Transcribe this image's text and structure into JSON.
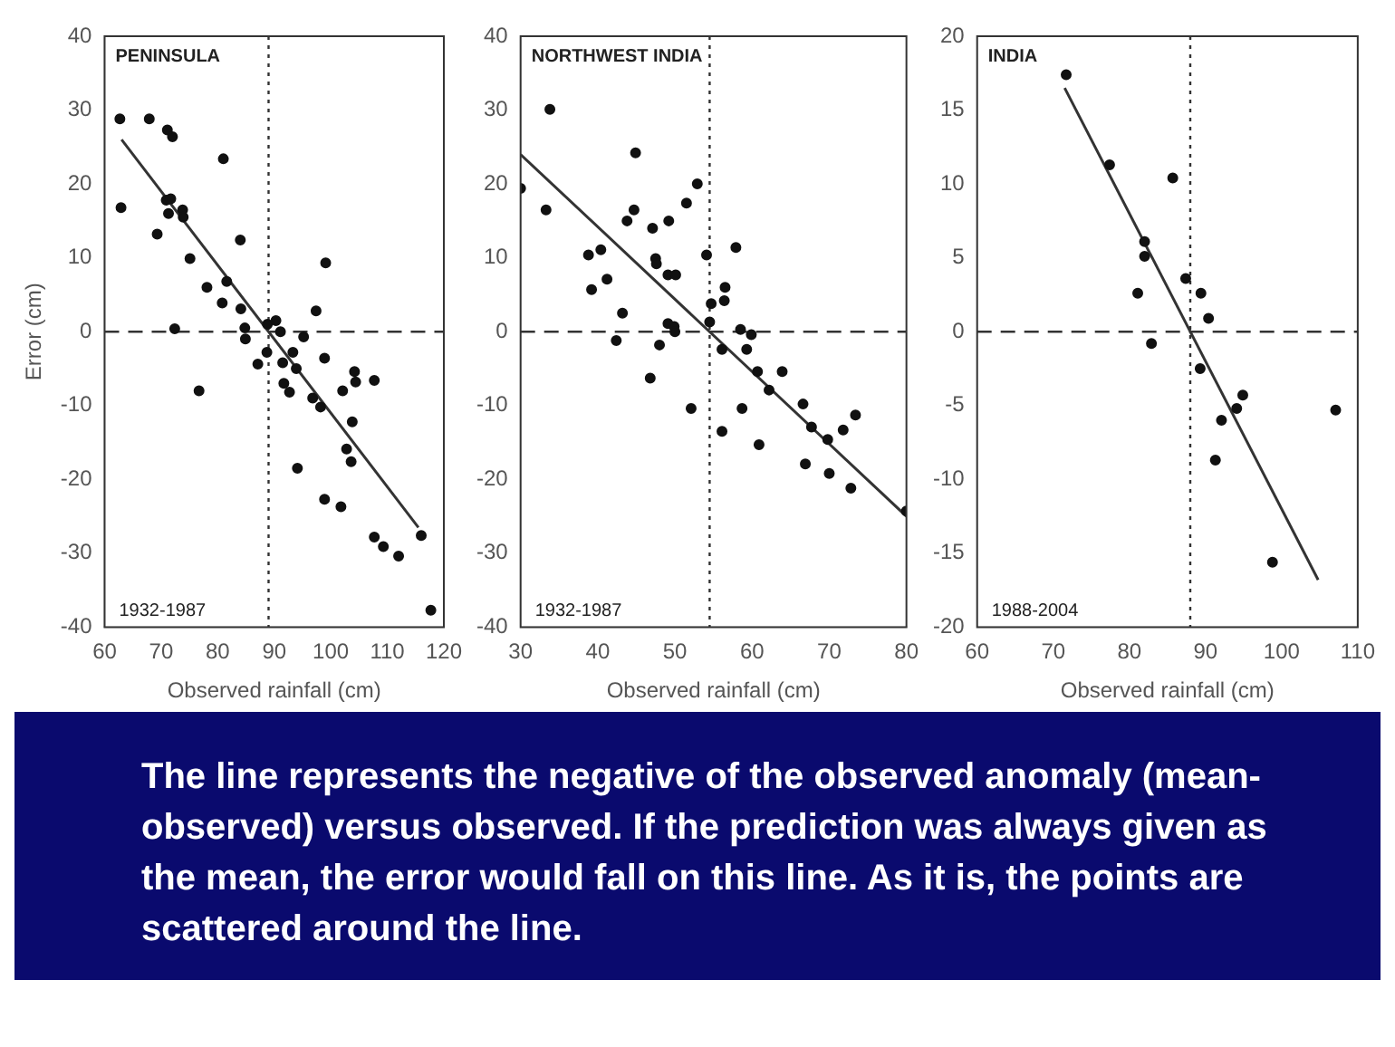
{
  "chart_data": [
    {
      "type": "scatter",
      "title": "PENINSULA",
      "xlabel": "Observed rainfall (cm)",
      "ylabel": "Error (cm)",
      "grid": false,
      "legend": false,
      "xlim": [
        60,
        120
      ],
      "xticks": [
        60,
        70,
        80,
        90,
        100,
        110,
        120
      ],
      "ylim": [
        -40,
        40
      ],
      "yticks": [
        -40,
        -30,
        -20,
        -10,
        0,
        10,
        20,
        30,
        40
      ],
      "annotations": [
        "1932-1987"
      ],
      "ref_lines": [
        {
          "axis": "y",
          "value": 0,
          "color": "#333333",
          "line_style": "dashed"
        },
        {
          "axis": "x",
          "value": 89,
          "color": "#333333",
          "line_style": "dotted"
        }
      ],
      "series": [
        {
          "type": "scatter",
          "color": "#111111",
          "marker": "circle",
          "x": [
            62.7,
            62.9,
            67.9,
            71.1,
            72.0,
            69.3,
            70.9,
            71.7,
            71.3,
            73.8,
            73.9,
            75.1,
            72.4,
            76.7,
            78.1,
            81,
            80.8,
            81.6,
            84,
            84.1,
            84.8,
            84.9,
            87.1,
            88.7,
            88.8,
            90.3,
            91.1,
            91.5,
            91.7,
            92.7,
            93.3,
            93.9,
            94.1,
            95.2,
            96.8,
            98.2,
            97.4,
            99.1,
            98.9,
            98.9,
            101.8,
            102.1,
            102.8,
            103.6,
            103.8,
            104.2,
            104.4,
            107.7,
            107.7,
            109.3,
            112,
            116,
            117.7
          ],
          "values": [
            28.8,
            16.8,
            28.8,
            27.3,
            26.4,
            13.2,
            17.8,
            18,
            16,
            16.5,
            15.5,
            9.9,
            0.4,
            -8,
            6,
            23.4,
            3.9,
            6.8,
            12.4,
            3.1,
            0.5,
            -1,
            -4.4,
            -2.8,
            1,
            1.5,
            0,
            -4.2,
            -7,
            -8.2,
            -2.8,
            -5,
            -18.5,
            -0.7,
            -9,
            -10.2,
            2.8,
            9.3,
            -3.6,
            -22.7,
            -23.7,
            -8,
            -15.9,
            -17.6,
            -12.2,
            -5.4,
            -6.8,
            -6.6,
            -27.8,
            -29.1,
            -30.4,
            -27.6,
            -37.7
          ]
        },
        {
          "type": "line",
          "color": "#333333",
          "marker": "none",
          "x": [
            63,
            115.5
          ],
          "values": [
            26,
            -26.5
          ]
        }
      ]
    },
    {
      "type": "scatter",
      "title": "NORTHWEST INDIA",
      "xlabel": "Observed rainfall (cm)",
      "grid": false,
      "legend": false,
      "xlim": [
        30,
        80
      ],
      "xticks": [
        30,
        40,
        50,
        60,
        70,
        80
      ],
      "ylim": [
        -40,
        40
      ],
      "yticks": [
        -40,
        -30,
        -20,
        -10,
        0,
        10,
        20,
        30,
        40
      ],
      "annotations": [
        "1932-1987"
      ],
      "ref_lines": [
        {
          "axis": "y",
          "value": 0,
          "color": "#333333",
          "line_style": "dashed"
        },
        {
          "axis": "x",
          "value": 54.5,
          "color": "#333333",
          "line_style": "dotted"
        }
      ],
      "series": [
        {
          "type": "scatter",
          "color": "#111111",
          "marker": "circle",
          "x": [
            30,
            33.8,
            33.3,
            38.8,
            40.4,
            39.2,
            41.2,
            43.2,
            42.4,
            44.9,
            43.8,
            44.7,
            47.1,
            47.5,
            47.6,
            49.2,
            49.1,
            50.1,
            46.8,
            48,
            49.1,
            49.9,
            50,
            51.5,
            52.1,
            52.9,
            54.1,
            54.7,
            54.5,
            56.5,
            56.4,
            56.1,
            56.1,
            57.9,
            58.5,
            58.7,
            59.3,
            59.9,
            60.7,
            60.9,
            62.2,
            63.9,
            66.6,
            66.9,
            67.7,
            69.8,
            70,
            71.8,
            72.8,
            73.4,
            80
          ],
          "values": [
            19.4,
            30.1,
            16.5,
            10.4,
            11.1,
            5.7,
            7.1,
            2.5,
            -1.2,
            24.2,
            15,
            16.5,
            14,
            9.9,
            9.2,
            15,
            7.7,
            7.7,
            -6.3,
            -1.8,
            1.1,
            0.7,
            0,
            17.4,
            -10.4,
            20,
            10.4,
            3.8,
            1.3,
            6,
            4.2,
            -2.4,
            -13.5,
            11.4,
            0.3,
            -10.4,
            -2.4,
            -0.4,
            -5.4,
            -15.3,
            -7.9,
            -5.4,
            -9.8,
            -17.9,
            -12.9,
            -14.6,
            -19.2,
            -13.3,
            -21.2,
            -11.3,
            -24.3
          ]
        },
        {
          "type": "line",
          "color": "#333333",
          "marker": "none",
          "x": [
            30,
            80
          ],
          "values": [
            24,
            -25
          ]
        }
      ]
    },
    {
      "type": "scatter",
      "title": "INDIA",
      "xlabel": "Observed rainfall (cm)",
      "grid": false,
      "legend": false,
      "xlim": [
        60,
        110
      ],
      "xticks": [
        60,
        70,
        80,
        90,
        100,
        110
      ],
      "ylim": [
        -20,
        20
      ],
      "yticks": [
        -20,
        -15,
        -10,
        -5,
        0,
        5,
        10,
        15,
        20
      ],
      "annotations": [
        "1988-2004"
      ],
      "ref_lines": [
        {
          "axis": "y",
          "value": 0,
          "color": "#333333",
          "line_style": "dashed"
        },
        {
          "axis": "x",
          "value": 88,
          "color": "#333333",
          "line_style": "dotted"
        }
      ],
      "series": [
        {
          "type": "scatter",
          "color": "#111111",
          "marker": "circle",
          "x": [
            71.7,
            77.4,
            85.7,
            82,
            82,
            81.1,
            82.9,
            87.4,
            89.4,
            90.4,
            89.3,
            92.1,
            91.3,
            94.1,
            94.9,
            98.8,
            107.1
          ],
          "values": [
            17.4,
            11.3,
            10.4,
            6.1,
            5.1,
            2.6,
            -0.8,
            3.6,
            2.6,
            0.9,
            -2.5,
            -6,
            -8.7,
            -5.2,
            -4.3,
            -15.6,
            -5.3
          ]
        },
        {
          "type": "line",
          "color": "#333333",
          "marker": "none",
          "x": [
            71.5,
            104.8
          ],
          "values": [
            16.5,
            -16.8
          ]
        }
      ]
    },
    {
      "type": "other",
      "annotations": [
        "The line represents the negative of the observed anomaly (mean-observed) versus observed. If the prediction was always given as the mean, the error would fall on this line. As it is, the points are scattered around the line."
      ]
    }
  ]
}
